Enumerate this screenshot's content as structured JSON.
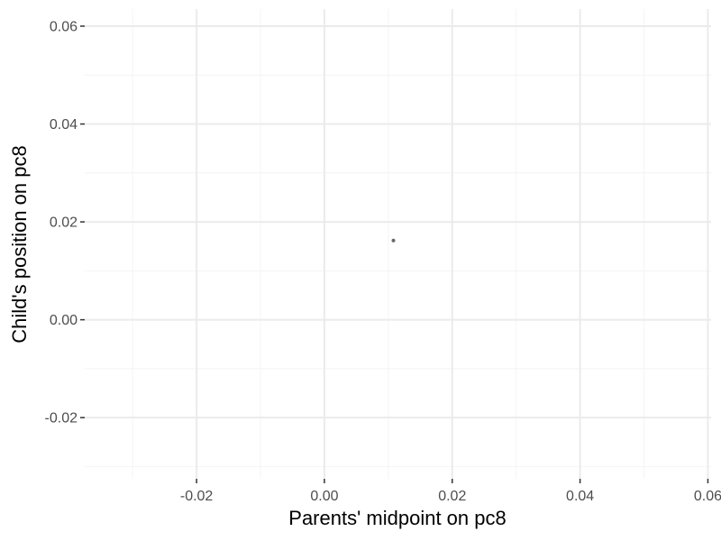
{
  "chart_data": {
    "type": "scatter",
    "title": "",
    "xlabel": "Parents' midpoint on pc8",
    "ylabel": "Child's position on pc8",
    "xlim": [
      -0.0375,
      0.0605
    ],
    "ylim": [
      -0.0325,
      0.0635
    ],
    "x_ticks": [
      -0.02,
      0.0,
      0.02,
      0.04,
      0.06
    ],
    "x_tick_labels": [
      "-0.02",
      "0.00",
      "0.02",
      "0.04",
      "0.06"
    ],
    "y_ticks": [
      -0.02,
      0.0,
      0.02,
      0.04,
      0.06
    ],
    "y_tick_labels": [
      "-0.02",
      "0.00",
      "0.02",
      "0.04",
      "0.06"
    ],
    "x_minor": [
      -0.03,
      -0.01,
      0.01,
      0.03,
      0.05
    ],
    "y_minor": [
      -0.03,
      -0.01,
      0.01,
      0.03,
      0.05
    ],
    "grid": true,
    "points": [
      {
        "x": 0.0108,
        "y": 0.0162
      }
    ],
    "colors": {
      "point": "#4d4d4d",
      "grid_major": "#ebebeb",
      "grid_minor": "#f4f4f4",
      "tick_text": "#4d4d4d",
      "title_text": "#000000"
    }
  }
}
